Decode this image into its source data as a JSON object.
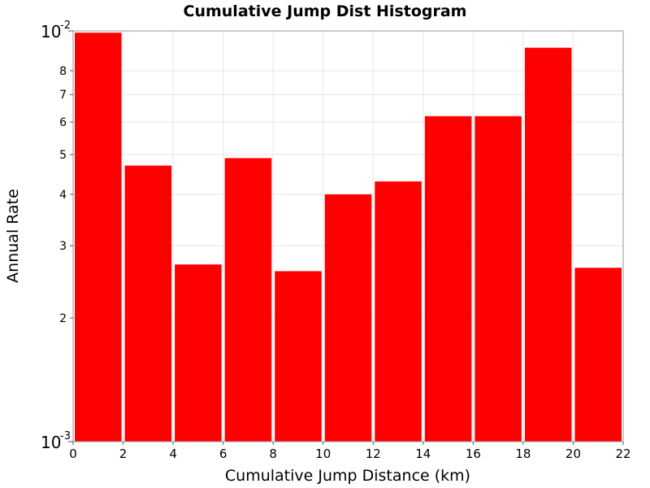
{
  "chart_data": {
    "type": "bar",
    "title": "Cumulative Jump Dist Histogram",
    "xlabel": "Cumulative Jump Distance (km)",
    "ylabel": "Annual Rate",
    "y_scale": "log",
    "xlim": [
      0,
      22
    ],
    "ylim": [
      0.001,
      0.01
    ],
    "bar_color": "#ff0000",
    "grid": true,
    "x_ticks": [
      "0",
      "2",
      "4",
      "6",
      "8",
      "10",
      "12",
      "14",
      "16",
      "18",
      "20",
      "22"
    ],
    "x_tick_values": [
      0,
      2,
      4,
      6,
      8,
      10,
      12,
      14,
      16,
      18,
      20,
      22
    ],
    "y_minor_ticks": [
      "2",
      "3",
      "4",
      "5",
      "6",
      "7",
      "8"
    ],
    "y_minor_tick_values": [
      0.002,
      0.003,
      0.004,
      0.005,
      0.006,
      0.007,
      0.008
    ],
    "y_decade_ticks": [
      {
        "base": "10",
        "exp": "-3",
        "value": 0.001
      },
      {
        "base": "10",
        "exp": "-2",
        "value": 0.01
      }
    ],
    "bin_width": 2,
    "series": [
      {
        "x": [
          1,
          3,
          5,
          7,
          9,
          11,
          13,
          15,
          17,
          19,
          21
        ],
        "values": [
          0.0099,
          0.0047,
          0.0027,
          0.0049,
          0.0026,
          0.004,
          0.0043,
          0.0062,
          0.0062,
          0.0091,
          0.00265
        ]
      }
    ]
  }
}
